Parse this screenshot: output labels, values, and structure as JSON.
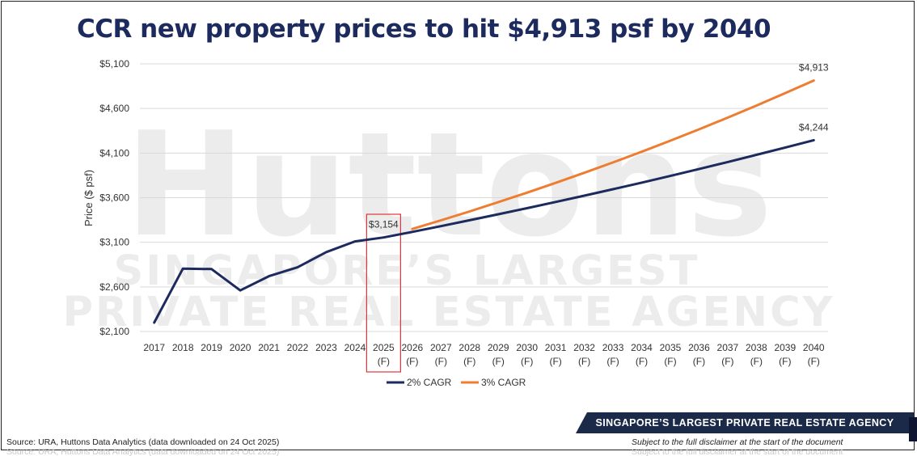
{
  "title": "CCR new property prices to hit $4,913 psf by 2040",
  "watermark": {
    "brand": "Huttons",
    "line1": "SINGAPORE’S LARGEST",
    "line2": "PRIVATE REAL ESTATE AGENCY"
  },
  "chart_data": {
    "type": "line",
    "title": "CCR new property prices to hit $4,913 psf by 2040",
    "xlabel": "",
    "ylabel": "Price ($ psf)",
    "ylim": [
      2100,
      5100
    ],
    "yticks": [
      2100,
      2600,
      3100,
      3600,
      4100,
      4600,
      5100
    ],
    "ytick_labels": [
      "$2,100",
      "$2,600",
      "$3,100",
      "$3,600",
      "$4,100",
      "$4,600",
      "$5,100"
    ],
    "grid": true,
    "legend_position": "bottom-center",
    "categories": [
      "2017",
      "2018",
      "2019",
      "2020",
      "2021",
      "2022",
      "2023",
      "2024",
      "2025",
      "2026",
      "2027",
      "2028",
      "2029",
      "2030",
      "2031",
      "2032",
      "2033",
      "2034",
      "2035",
      "2036",
      "2037",
      "2038",
      "2039",
      "2040"
    ],
    "forecast_marker": "(F)",
    "forecast_start_index": 8,
    "highlight_index": 8,
    "series": [
      {
        "name": "2% CAGR",
        "color": "#1c2a5e",
        "values": [
          2200,
          2805,
          2800,
          2560,
          2720,
          2820,
          2990,
          3110,
          3154,
          3217,
          3281,
          3347,
          3414,
          3482,
          3552,
          3623,
          3695,
          3769,
          3844,
          3921,
          4000,
          4080,
          4161,
          4244
        ]
      },
      {
        "name": "3% CAGR",
        "color": "#ed7d31",
        "values": [
          null,
          null,
          null,
          null,
          null,
          null,
          null,
          null,
          null,
          3249,
          3346,
          3446,
          3550,
          3656,
          3766,
          3879,
          3995,
          4115,
          4239,
          4366,
          4497,
          4632,
          4771,
          4913
        ]
      }
    ],
    "annotations": [
      {
        "series": 0,
        "index": 8,
        "text": "$3,154"
      },
      {
        "series": 0,
        "index": 23,
        "text": "$4,244"
      },
      {
        "series": 1,
        "index": 23,
        "text": "$4,913"
      }
    ]
  },
  "banner": "SINGAPORE’S LARGEST PRIVATE REAL ESTATE AGENCY",
  "footer": {
    "source": "Source: URA, Huttons Data Analytics (data downloaded on 24 Oct 2025)",
    "disclaimer": "Subject to the full disclaimer at the start of the document"
  }
}
